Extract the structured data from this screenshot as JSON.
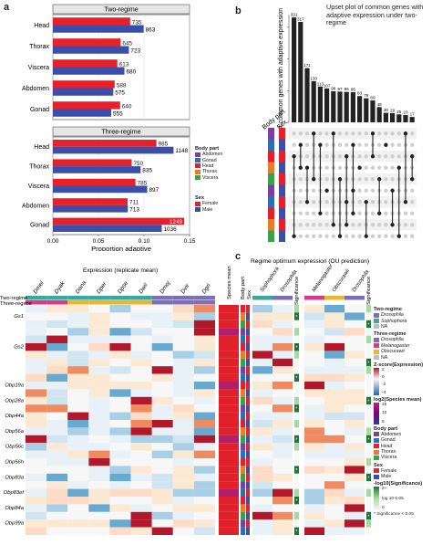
{
  "panel_labels": {
    "a": "a",
    "b": "b",
    "c": "c"
  },
  "chart_data": [
    {
      "id": "a-two",
      "type": "bar",
      "title": "Two-regime",
      "orientation": "horizontal",
      "categories": [
        "Head",
        "Thorax",
        "Viscera",
        "Abdomen",
        "Gonad"
      ],
      "series": [
        {
          "name": "Female",
          "values": [
            735,
            645,
            613,
            588,
            640
          ]
        },
        {
          "name": "Male",
          "values": [
            863,
            723,
            680,
            575,
            555
          ]
        }
      ],
      "value_labels": {
        "Female": [
          "735",
          "645",
          "613",
          "588",
          "640"
        ],
        "Male": [
          "863",
          "723",
          "680",
          "575",
          "555"
        ]
      },
      "bar_lengths": {
        "Female": [
          0.0848,
          0.0744,
          0.0707,
          0.0678,
          0.0738
        ],
        "Male": [
          0.0996,
          0.0834,
          0.0785,
          0.0663,
          0.064
        ]
      },
      "xlim": [
        0,
        0.15
      ],
      "colors": {
        "Female": "#e8202a",
        "Male": "#3b4fa8"
      }
    },
    {
      "id": "a-three",
      "type": "bar",
      "title": "Three-regime",
      "orientation": "horizontal",
      "categories": [
        "Head",
        "Thorax",
        "Viscera",
        "Abdomen",
        "Gonad"
      ],
      "series": [
        {
          "name": "Female",
          "values": [
            985,
            750,
            785,
            711,
            1249
          ]
        },
        {
          "name": "Male",
          "values": [
            1148,
            835,
            897,
            713,
            1036
          ]
        }
      ],
      "value_labels": {
        "Female": [
          "985",
          "750",
          "785",
          "711",
          "1249"
        ],
        "Male": [
          "1148",
          "835",
          "897",
          "713",
          "1036"
        ]
      },
      "bar_lengths": {
        "Female": [
          0.1136,
          0.0865,
          0.0906,
          0.082,
          0.1441
        ],
        "Male": [
          0.1324,
          0.0963,
          0.1035,
          0.0823,
          0.1195
        ]
      },
      "xlim": [
        0,
        0.15
      ],
      "xticks": [
        "0.00",
        "0.05",
        "0.10",
        "0.15"
      ],
      "xlabel": "Proportion adaptive",
      "colors": {
        "Female": "#e8202a",
        "Male": "#3b4fa8"
      }
    },
    {
      "id": "b-upset",
      "type": "bar",
      "title": "Upset plot of common genes with adaptive expression under two-regime",
      "ylabel": "# common genes with adaptive expression",
      "values": [
        331,
        317,
        171,
        130,
        113,
        107,
        98,
        97,
        96,
        95,
        83,
        76,
        69,
        48,
        30,
        29,
        25,
        23,
        17
      ],
      "value_labels": [
        "331",
        "317",
        "171",
        "130",
        "113",
        "107",
        "98",
        "97",
        "96",
        "95",
        "83",
        "76",
        "69",
        "48",
        "30",
        "29",
        "25",
        "23",
        "17"
      ],
      "ylim": [
        0,
        340
      ],
      "set_axis_labels": {
        "body_part": "Body part",
        "sex": "Sex"
      },
      "matrix": [
        [
          [
            2,
            9
          ]
        ],
        [
          [
            1,
            3
          ]
        ],
        [
          [
            3,
            6
          ]
        ],
        [
          [
            0,
            4
          ]
        ],
        [
          [
            1,
            7
          ]
        ],
        [
          [
            5
          ]
        ],
        [
          [
            0,
            8
          ]
        ],
        [
          [
            4,
            9
          ]
        ],
        [
          [
            2,
            6,
            8
          ]
        ],
        [
          [
            1,
            5,
            7
          ]
        ],
        [
          [
            3
          ]
        ],
        [
          [
            6,
            9
          ]
        ],
        [
          [
            0,
            2
          ]
        ],
        [
          [
            4,
            7
          ]
        ],
        [
          [
            1
          ]
        ],
        [
          [
            5,
            8
          ]
        ],
        [
          [
            3,
            9
          ]
        ],
        [
          [
            0,
            6
          ]
        ],
        [
          [
            2,
            4
          ]
        ]
      ]
    },
    {
      "id": "c-heatmap",
      "type": "heatmap",
      "header_left": "Expression (replicate mean)",
      "header_right": "Regime optimum expression (OU prediction)",
      "species": [
        "Dmel",
        "Dyak",
        "Dana",
        "Dper",
        "Dpse",
        "Dwil",
        "Dmoj",
        "Dvir",
        "Dgri"
      ],
      "ou_columns": [
        "Sophophora",
        "Drosophila",
        "Melanogaster",
        "Obscurawii",
        "Drosophila"
      ],
      "row_bar_labels": {
        "two": "Two-regime",
        "three": "Three-regime"
      },
      "column_labels": {
        "species_mean": "Species mean",
        "body_part": "Body part",
        "sex": "Sex",
        "significance_left": "Significance",
        "significance_right": "Significance"
      },
      "gene_labels": [
        "Gs1",
        "Gs2",
        "Obp19a",
        "Obp28a",
        "Obp44a",
        "Obp56a",
        "Obp56c",
        "Obp56h",
        "Obp83a",
        "Obp83ef",
        "Obp84a",
        "Obp99a"
      ],
      "rows": 30
    }
  ],
  "legends": {
    "body_part": {
      "title": "Body part",
      "items": [
        {
          "label": "Abdomen",
          "color": "#7b3fa0"
        },
        {
          "label": "Gonad",
          "color": "#2c6fb7"
        },
        {
          "label": "Head",
          "color": "#e0202a"
        },
        {
          "label": "Thorax",
          "color": "#e87c2a"
        },
        {
          "label": "Viscera",
          "color": "#3aa04a"
        }
      ]
    },
    "sex": {
      "title": "Sex",
      "items": [
        {
          "label": "Female",
          "color": "#e8202a"
        },
        {
          "label": "Male",
          "color": "#3b4fa8"
        }
      ]
    },
    "c_two_regime": {
      "title": "Two-regime",
      "items": [
        {
          "label": "Drosophila",
          "color": "#7b6fb8"
        },
        {
          "label": "Sophophora",
          "color": "#3aa89a"
        },
        {
          "label": "NA",
          "color": "#bdbdbd"
        }
      ]
    },
    "c_three_regime": {
      "title": "Three-regime",
      "items": [
        {
          "label": "Drosophila",
          "color": "#7b6fb8"
        },
        {
          "label": "Melanogaster",
          "color": "#d83a8a"
        },
        {
          "label": "Obscurawii",
          "color": "#e8b82a"
        },
        {
          "label": "NA",
          "color": "#bdbdbd"
        }
      ]
    },
    "zscore": {
      "title": "Z-score(Expression)",
      "ticks": [
        "2",
        "0",
        "-2",
        "-4"
      ]
    },
    "log2": {
      "title": "log2(Species mean)",
      "ticks": [
        "15",
        "10",
        "5"
      ]
    },
    "c_body_part": {
      "title": "Body part",
      "items": [
        {
          "label": "Abdomen",
          "color": "#7b3fa0"
        },
        {
          "label": "Gonad",
          "color": "#2c6fb7"
        },
        {
          "label": "Head",
          "color": "#e0202a"
        },
        {
          "label": "Thorax",
          "color": "#e87c2a"
        },
        {
          "label": "Viscera",
          "color": "#3aa04a"
        }
      ]
    },
    "c_sex": {
      "title": "Sex",
      "items": [
        {
          "label": "Female",
          "color": "#e8202a"
        },
        {
          "label": "Male",
          "color": "#3b4fa8"
        }
      ]
    },
    "significance": {
      "title": "-log10(Significance)",
      "ticks": [
        "2+",
        "log 10 0.05",
        "0"
      ],
      "note": "* Significance < 0.05"
    }
  }
}
